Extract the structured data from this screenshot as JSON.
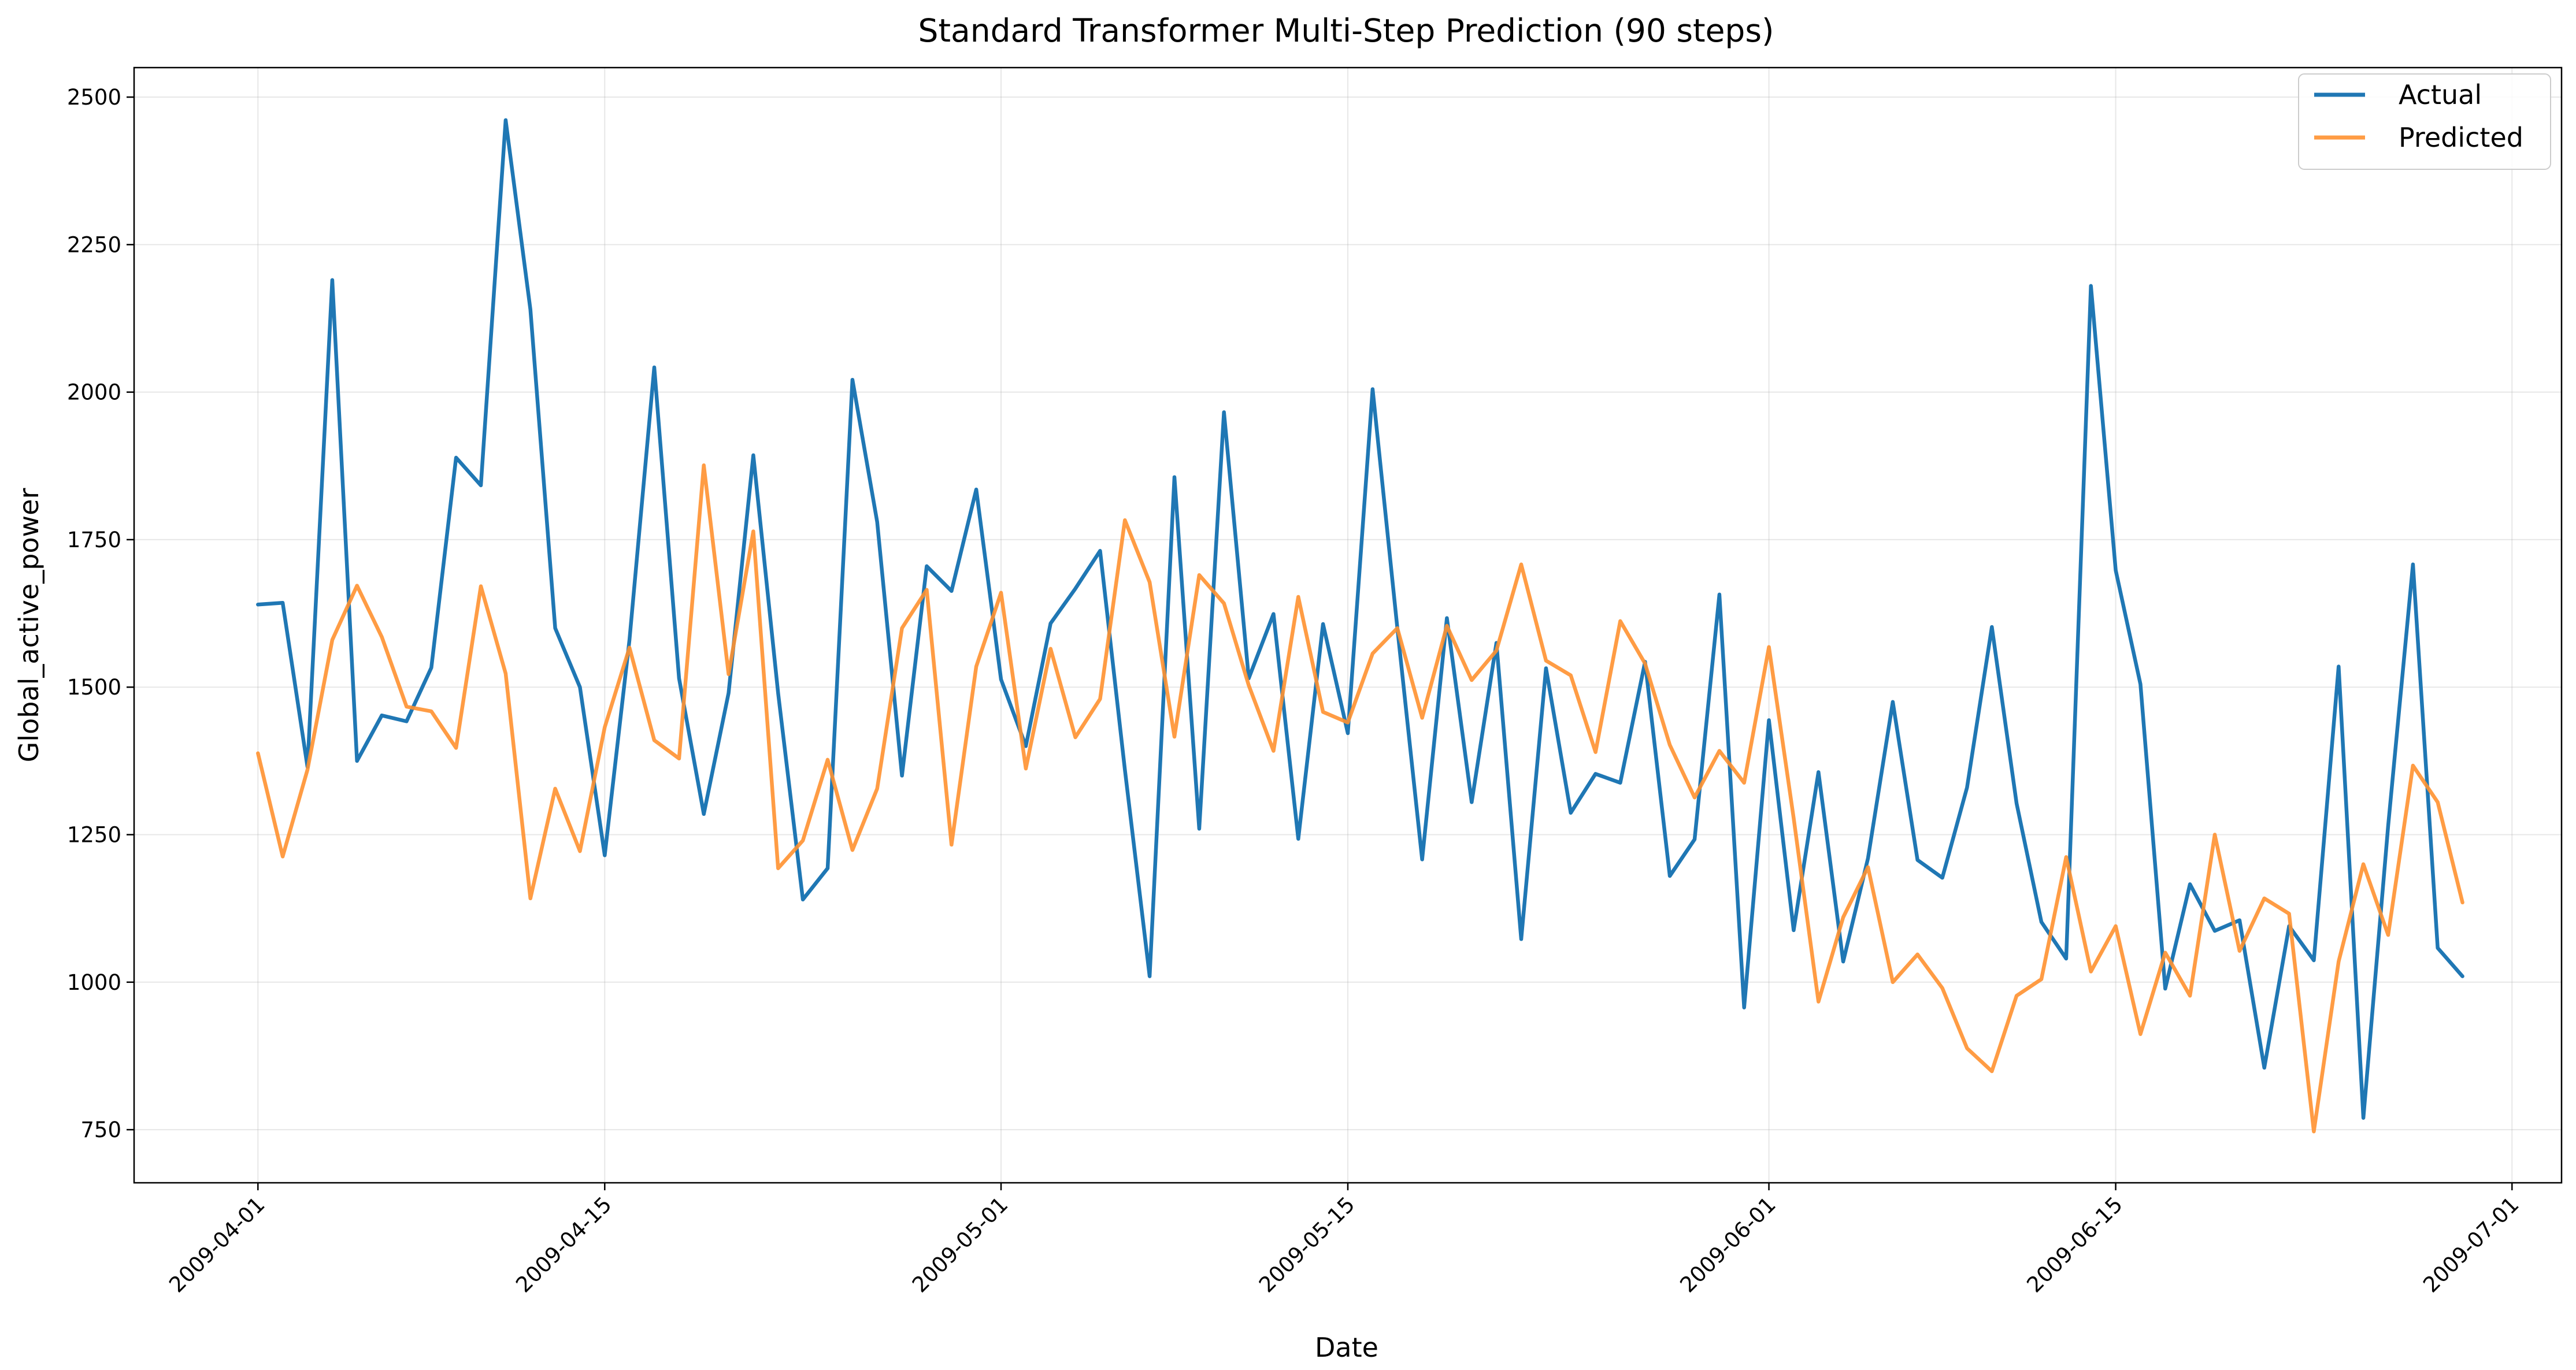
{
  "chart_data": {
    "type": "line",
    "title": "Standard Transformer Multi-Step Prediction (90 steps)",
    "xlabel": "Date",
    "ylabel": "Global_active_power",
    "x_start": "2009-04-01",
    "x_ticks": [
      "2009-04-01",
      "2009-04-15",
      "2009-05-01",
      "2009-05-15",
      "2009-06-01",
      "2009-06-15",
      "2009-07-01"
    ],
    "y_ticks": [
      750,
      1000,
      1250,
      1500,
      1750,
      2000,
      2250,
      2500
    ],
    "xlim": [
      "2009-03-27",
      "2009-07-03"
    ],
    "ylim": [
      660,
      2550
    ],
    "grid": true,
    "legend_position": "top-right",
    "series": [
      {
        "name": "Actual",
        "color": "#1f77b4",
        "values": [
          1640,
          1643,
          1365,
          2190,
          1375,
          1452,
          1442,
          1533,
          1889,
          1842,
          2461,
          2140,
          1600,
          1500,
          1215,
          1580,
          2042,
          1515,
          1285,
          1490,
          1893,
          1490,
          1140,
          1193,
          2021,
          1780,
          1350,
          1705,
          1663,
          1835,
          1513,
          1400,
          1608,
          1667,
          1731,
          1360,
          1010,
          1856,
          1260,
          1966,
          1515,
          1624,
          1243,
          1607,
          1422,
          2005,
          1600,
          1208,
          1617,
          1305,
          1575,
          1073,
          1532,
          1287,
          1353,
          1338,
          1543,
          1180,
          1242,
          1657,
          957,
          1444,
          1088,
          1356,
          1035,
          1210,
          1475,
          1207,
          1177,
          1330,
          1602,
          1303,
          1102,
          1040,
          2180,
          1698,
          1505,
          989,
          1166,
          1087,
          1105,
          855,
          1095,
          1037,
          1535,
          770,
          1265,
          1708,
          1058,
          1010
        ]
      },
      {
        "name": "Predicted",
        "color": "#ff9130",
        "values": [
          1388,
          1213,
          1360,
          1580,
          1672,
          1585,
          1467,
          1459,
          1397,
          1671,
          1523,
          1142,
          1328,
          1222,
          1432,
          1567,
          1410,
          1379,
          1876,
          1522,
          1764,
          1193,
          1240,
          1377,
          1224,
          1328,
          1600,
          1665,
          1233,
          1535,
          1660,
          1362,
          1565,
          1415,
          1480,
          1783,
          1678,
          1416,
          1690,
          1642,
          1503,
          1392,
          1653,
          1458,
          1440,
          1557,
          1600,
          1448,
          1604,
          1512,
          1562,
          1708,
          1545,
          1520,
          1390,
          1612,
          1540,
          1402,
          1313,
          1392,
          1338,
          1568,
          1278,
          967,
          1110,
          1195,
          1000,
          1047,
          990,
          888,
          849,
          977,
          1005,
          1212,
          1018,
          1095,
          912,
          1050,
          977,
          1250,
          1053,
          1142,
          1116,
          747,
          1035,
          1200,
          1080,
          1367,
          1305,
          1135
        ]
      }
    ]
  }
}
